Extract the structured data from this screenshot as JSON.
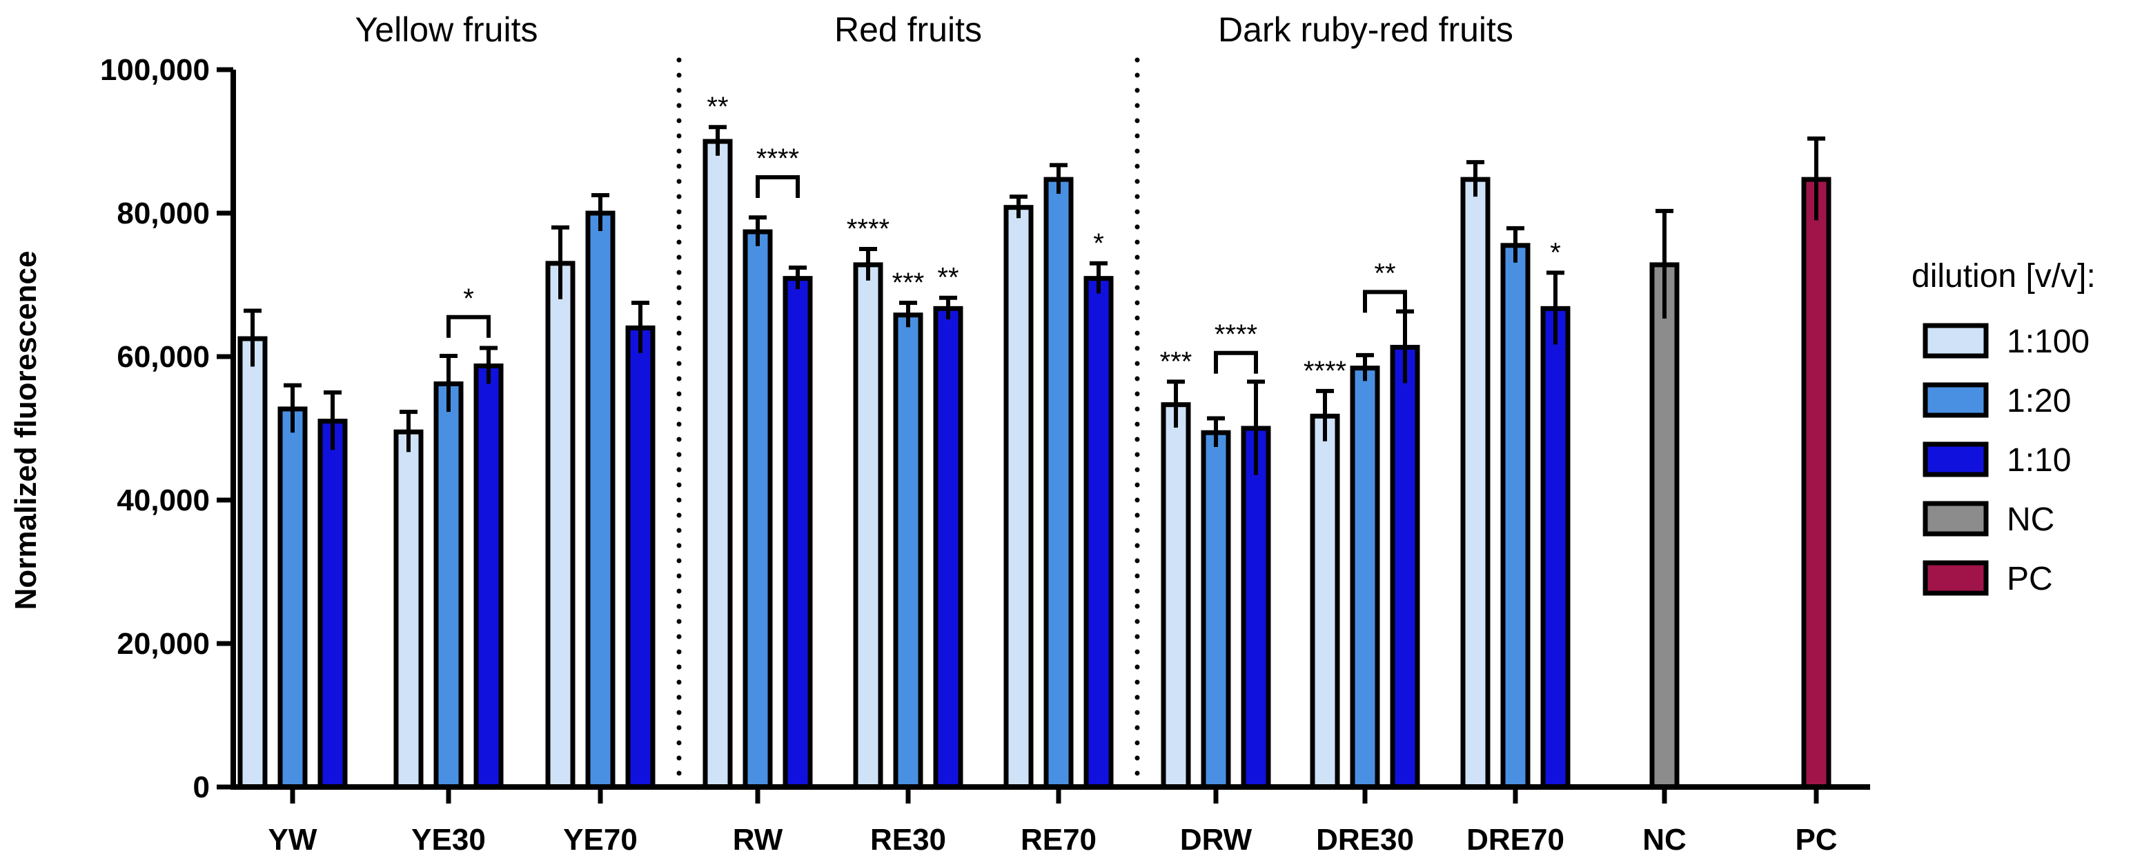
{
  "chart_data": {
    "type": "bar",
    "title": "",
    "xlabel": "",
    "ylabel": "Normalized fluorescence",
    "ylim": [
      0,
      100000
    ],
    "yticks": [
      0,
      20000,
      40000,
      60000,
      80000,
      100000
    ],
    "ytick_labels": [
      "0",
      "20,000",
      "40,000",
      "60,000",
      "80,000",
      "100,000"
    ],
    "grid": false,
    "legend_position": "right",
    "categories": [
      "YW",
      "YE30",
      "YE70",
      "RW",
      "RE30",
      "RE70",
      "DRW",
      "DRE30",
      "DRE70",
      "NC",
      "PC"
    ],
    "series": [
      {
        "name": "1:100",
        "color": "#cfe2f7",
        "values": [
          62500,
          49500,
          73000,
          90000,
          72800,
          80800,
          53300,
          51700,
          84700,
          null,
          null
        ],
        "errors": [
          3900,
          2800,
          5000,
          2000,
          2200,
          1500,
          3200,
          3500,
          2400,
          null,
          null
        ]
      },
      {
        "name": "1:20",
        "color": "#4a90e2",
        "values": [
          52700,
          56200,
          80000,
          77400,
          65800,
          84700,
          49400,
          58400,
          75500,
          null,
          null
        ],
        "errors": [
          3300,
          3900,
          2500,
          2000,
          1700,
          2000,
          2000,
          1800,
          2400,
          null,
          null
        ]
      },
      {
        "name": "1:10",
        "color": "#1111dd",
        "values": [
          51000,
          58700,
          64000,
          70900,
          66700,
          70900,
          50000,
          61300,
          66700,
          null,
          null
        ],
        "errors": [
          4000,
          2500,
          3500,
          1500,
          1500,
          2100,
          6500,
          5000,
          5000,
          null,
          null
        ]
      },
      {
        "name": "NC",
        "color": "#8c8c8c",
        "values": [
          null,
          null,
          null,
          null,
          null,
          null,
          null,
          null,
          null,
          72800,
          null
        ],
        "errors": [
          null,
          null,
          null,
          null,
          null,
          null,
          null,
          null,
          null,
          7500,
          null
        ]
      },
      {
        "name": "PC",
        "color": "#a0144a",
        "values": [
          null,
          null,
          null,
          null,
          null,
          null,
          null,
          null,
          null,
          null,
          84700
        ],
        "errors": [
          null,
          null,
          null,
          null,
          null,
          null,
          null,
          null,
          null,
          null,
          5700
        ]
      }
    ],
    "group_labels": [
      {
        "text": "Yellow fruits",
        "categories": [
          "YW",
          "YE30",
          "YE70"
        ]
      },
      {
        "text": "Red fruits",
        "categories": [
          "RW",
          "RE30",
          "RE70"
        ]
      },
      {
        "text": "Dark ruby-red fruits",
        "categories": [
          "DRW",
          "DRE30",
          "DRE70"
        ]
      }
    ],
    "separators_after_categories": [
      "YE70",
      "RE70"
    ],
    "annotations": [
      {
        "text": "**",
        "category": "RW",
        "series": "1:100"
      },
      {
        "text": "****",
        "category": "RW",
        "bracket": [
          "1:20",
          "1:10"
        ],
        "at": 85000
      },
      {
        "text": "****",
        "category": "RE30",
        "series": "1:100"
      },
      {
        "text": "***",
        "category": "RE30",
        "series": "1:20"
      },
      {
        "text": "**",
        "category": "RE30",
        "series": "1:10"
      },
      {
        "text": "*",
        "category": "RE70",
        "series": "1:10"
      },
      {
        "text": "*",
        "category": "YE30",
        "bracket": [
          "1:20",
          "1:10"
        ],
        "at": 65500
      },
      {
        "text": "***",
        "category": "DRW",
        "series": "1:100"
      },
      {
        "text": "****",
        "category": "DRW",
        "bracket": [
          "1:20",
          "1:10"
        ],
        "at": 60500
      },
      {
        "text": "****",
        "category": "DRE30",
        "series": "1:100"
      },
      {
        "text": "**",
        "category": "DRE30",
        "bracket": [
          "1:20",
          "1:10"
        ],
        "at": 69000
      },
      {
        "text": "*",
        "category": "DRE70",
        "series": "1:10"
      }
    ],
    "legend_title": "dilution [v/v]:",
    "legend_items": [
      "1:100",
      "1:20",
      "1:10",
      "NC",
      "PC"
    ]
  }
}
